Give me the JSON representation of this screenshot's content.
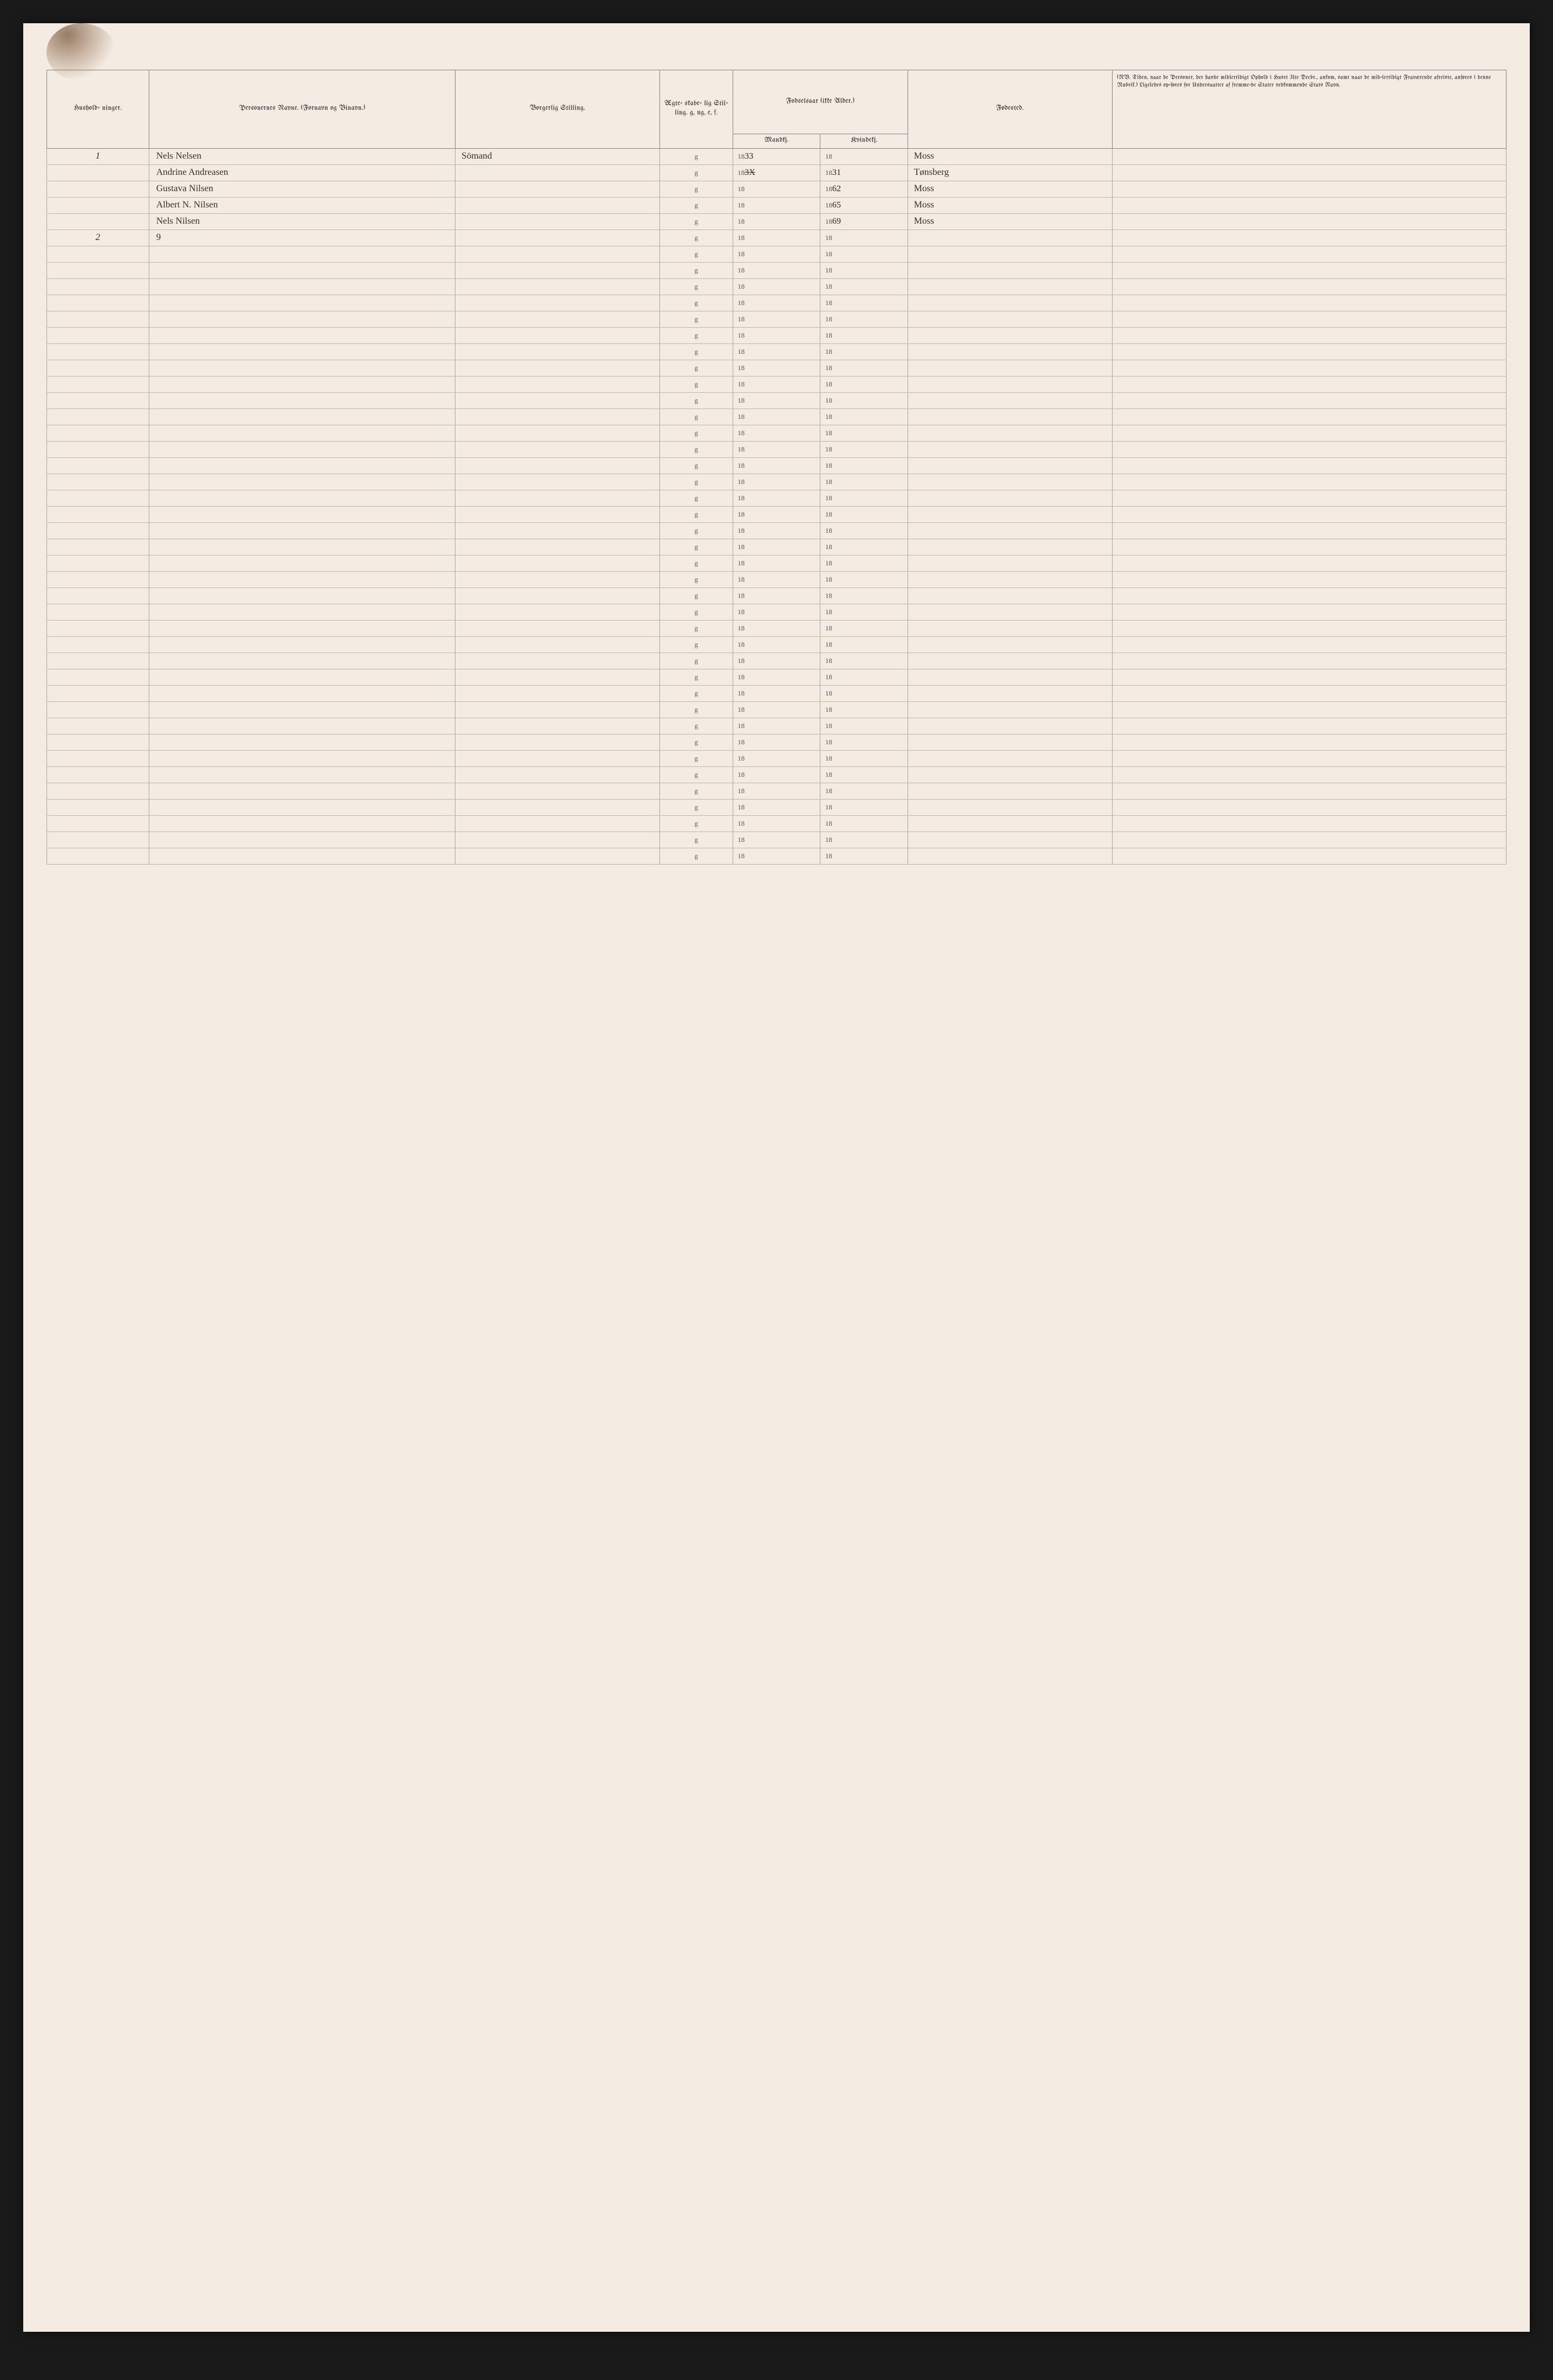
{
  "columns": {
    "hushold": "Hushold-\nninger.",
    "name": "Personernes Navne.\n(Fornavn og Binavn.)",
    "stilling": "Borgerlig Stilling.",
    "egte": "Ægte-\nskabe-\nlig\nStil-\nling.\ng, ug,\ne, f.",
    "fodsel_group": "Fodselsaar\n(ikke Alder.)",
    "mandkj": "Mandkj.",
    "kvindkj": "Kvindekj.",
    "fodested": "Fødested.",
    "notes": "(NB. Tiden, naar de Personer, der havde midlertidigt Ophold i Huset 31te Decbr., ankom, samt naar de mid-lertidigt Fraværende afreiste, anføres i denne Rubrik.) Ligeledes op-føres for Undersaatter af fremme-de Stater vedkommende Stats Navn."
  },
  "year_prefix_letter": "g",
  "year_prefix": "18",
  "rows": [
    {
      "hushold": "1",
      "name": "Nels Nelsen",
      "stilling": "Sömand",
      "egte": "g",
      "mandkj_suffix": "33",
      "kvindkj_suffix": "",
      "fodested": "Moss",
      "notes": ""
    },
    {
      "hushold": "",
      "name": "Andrine Andreasen",
      "stilling": "",
      "egte": "g",
      "mandkj_suffix_struck": "3X",
      "kvindkj_suffix": "31",
      "fodested": "Tønsberg",
      "notes": ""
    },
    {
      "hushold": "",
      "name": "Gustava Nilsen",
      "stilling": "",
      "egte": "g",
      "mandkj_suffix": "",
      "kvindkj_suffix": "62",
      "fodested": "Moss",
      "notes": ""
    },
    {
      "hushold": "",
      "name": "Albert N. Nilsen",
      "stilling": "",
      "egte": "g",
      "mandkj_suffix": "",
      "kvindkj_suffix": "65",
      "fodested": "Moss",
      "notes": ""
    },
    {
      "hushold": "",
      "name": "Nels Nilsen",
      "stilling": "",
      "egte": "g",
      "mandkj_suffix": "",
      "kvindkj_suffix": "69",
      "fodested": "Moss",
      "notes": ""
    },
    {
      "hushold": "2",
      "name": "9",
      "stilling": "",
      "egte": "g",
      "mandkj_suffix": "",
      "kvindkj_suffix": "",
      "fodested": "",
      "notes": ""
    }
  ],
  "blank_row_count": 38,
  "colors": {
    "page_bg": "#f4ebe3",
    "body_bg": "#1a1a1a",
    "rule": "#c8b8a8",
    "border": "#888888",
    "ink": "#3a2f28",
    "print": "#555555"
  }
}
